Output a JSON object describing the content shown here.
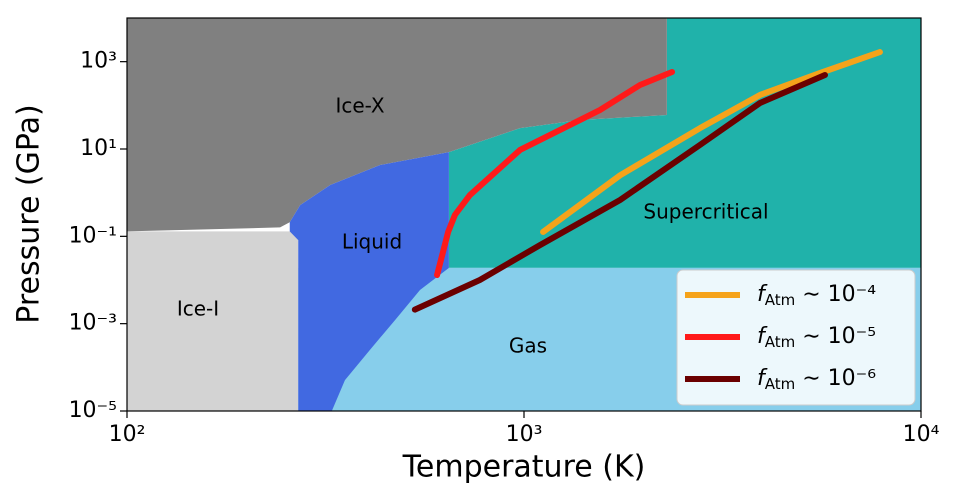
{
  "chart_data": {
    "type": "line",
    "xlabel": "Temperature (K)",
    "ylabel": "Pressure (GPa)",
    "xscale": "log",
    "yscale": "log",
    "xlim": [
      100,
      10000
    ],
    "ylim": [
      1e-05,
      10000
    ],
    "xticks": [
      {
        "value": 100,
        "label": "10²"
      },
      {
        "value": 1000,
        "label": "10³"
      },
      {
        "value": 10000,
        "label": "10⁴"
      }
    ],
    "yticks": [
      {
        "value": 1e-05,
        "label": "10⁻⁵"
      },
      {
        "value": 0.001,
        "label": "10⁻³"
      },
      {
        "value": 0.1,
        "label": "10⁻¹"
      },
      {
        "value": 10,
        "label": "10¹"
      },
      {
        "value": 1000,
        "label": "10³"
      }
    ],
    "legend": "lower right",
    "regions": [
      {
        "name": "Supercritical",
        "color": "#20b2aa",
        "boundary": [
          [
            647,
            0.019
          ],
          [
            10000,
            0.019
          ],
          [
            10000,
            10000
          ],
          [
            2290,
            10000
          ],
          [
            2290,
            60
          ],
          [
            1384,
            46
          ],
          [
            977,
            30
          ],
          [
            647,
            8.5
          ]
        ]
      },
      {
        "name": "Gas",
        "color": "#87ceeb",
        "boundary": [
          [
            270,
            1e-05
          ],
          [
            10000,
            1e-05
          ],
          [
            10000,
            0.019
          ],
          [
            270,
            0.019
          ]
        ]
      },
      {
        "name": "Ice-I",
        "color": "#d3d3d3",
        "boundary": [
          [
            100,
            1e-05
          ],
          [
            270,
            1e-05
          ],
          [
            270,
            0.13
          ],
          [
            257,
            0.13
          ],
          [
            100,
            0.13
          ]
        ]
      },
      {
        "name": "Ice-X",
        "color": "#808080",
        "boundary": [
          [
            100,
            10000
          ],
          [
            2290,
            10000
          ],
          [
            2290,
            60
          ],
          [
            1384,
            46
          ],
          [
            977,
            30
          ],
          [
            647,
            8.5
          ],
          [
            434,
            4.3
          ],
          [
            325,
            1.5
          ],
          [
            273,
            0.52
          ],
          [
            257,
            0.21
          ],
          [
            243,
            0.16
          ],
          [
            100,
            0.13
          ]
        ]
      },
      {
        "name": "Liquid",
        "color": "#4169e1",
        "boundary": [
          [
            257,
            0.21
          ],
          [
            273,
            0.52
          ],
          [
            325,
            1.5
          ],
          [
            434,
            4.3
          ],
          [
            647,
            8.5
          ],
          [
            647,
            0.019
          ],
          [
            547,
            0.0059
          ],
          [
            473,
            0.0012
          ],
          [
            409,
            0.00025
          ],
          [
            354,
            5.1e-05
          ],
          [
            328,
            1e-05
          ],
          [
            270,
            1e-05
          ],
          [
            270,
            0.082
          ],
          [
            257,
            0.13
          ]
        ]
      }
    ],
    "series": [
      {
        "name": "fAtm ∼ 10⁻⁴",
        "color": "#f5a31a",
        "x": [
          1117,
          1746,
          2775,
          3930,
          5570,
          7880
        ],
        "y": [
          0.126,
          2.5,
          30,
          173,
          550,
          1660
        ]
      },
      {
        "name": "fAtm ∼ 10⁻⁵",
        "color": "#ff1a1a",
        "x": [
          604,
          644,
          670,
          731,
          977,
          1553,
          1960,
          2360
        ],
        "y": [
          0.013,
          0.126,
          0.31,
          0.885,
          9.5,
          78,
          292,
          580
        ]
      },
      {
        "name": "fAtm ∼ 10⁻⁶",
        "color": "#6b0000",
        "x": [
          531,
          774,
          1097,
          1746,
          2775,
          3930,
          5730
        ],
        "y": [
          0.0021,
          0.01,
          0.063,
          0.68,
          12.4,
          113,
          495
        ]
      }
    ]
  }
}
